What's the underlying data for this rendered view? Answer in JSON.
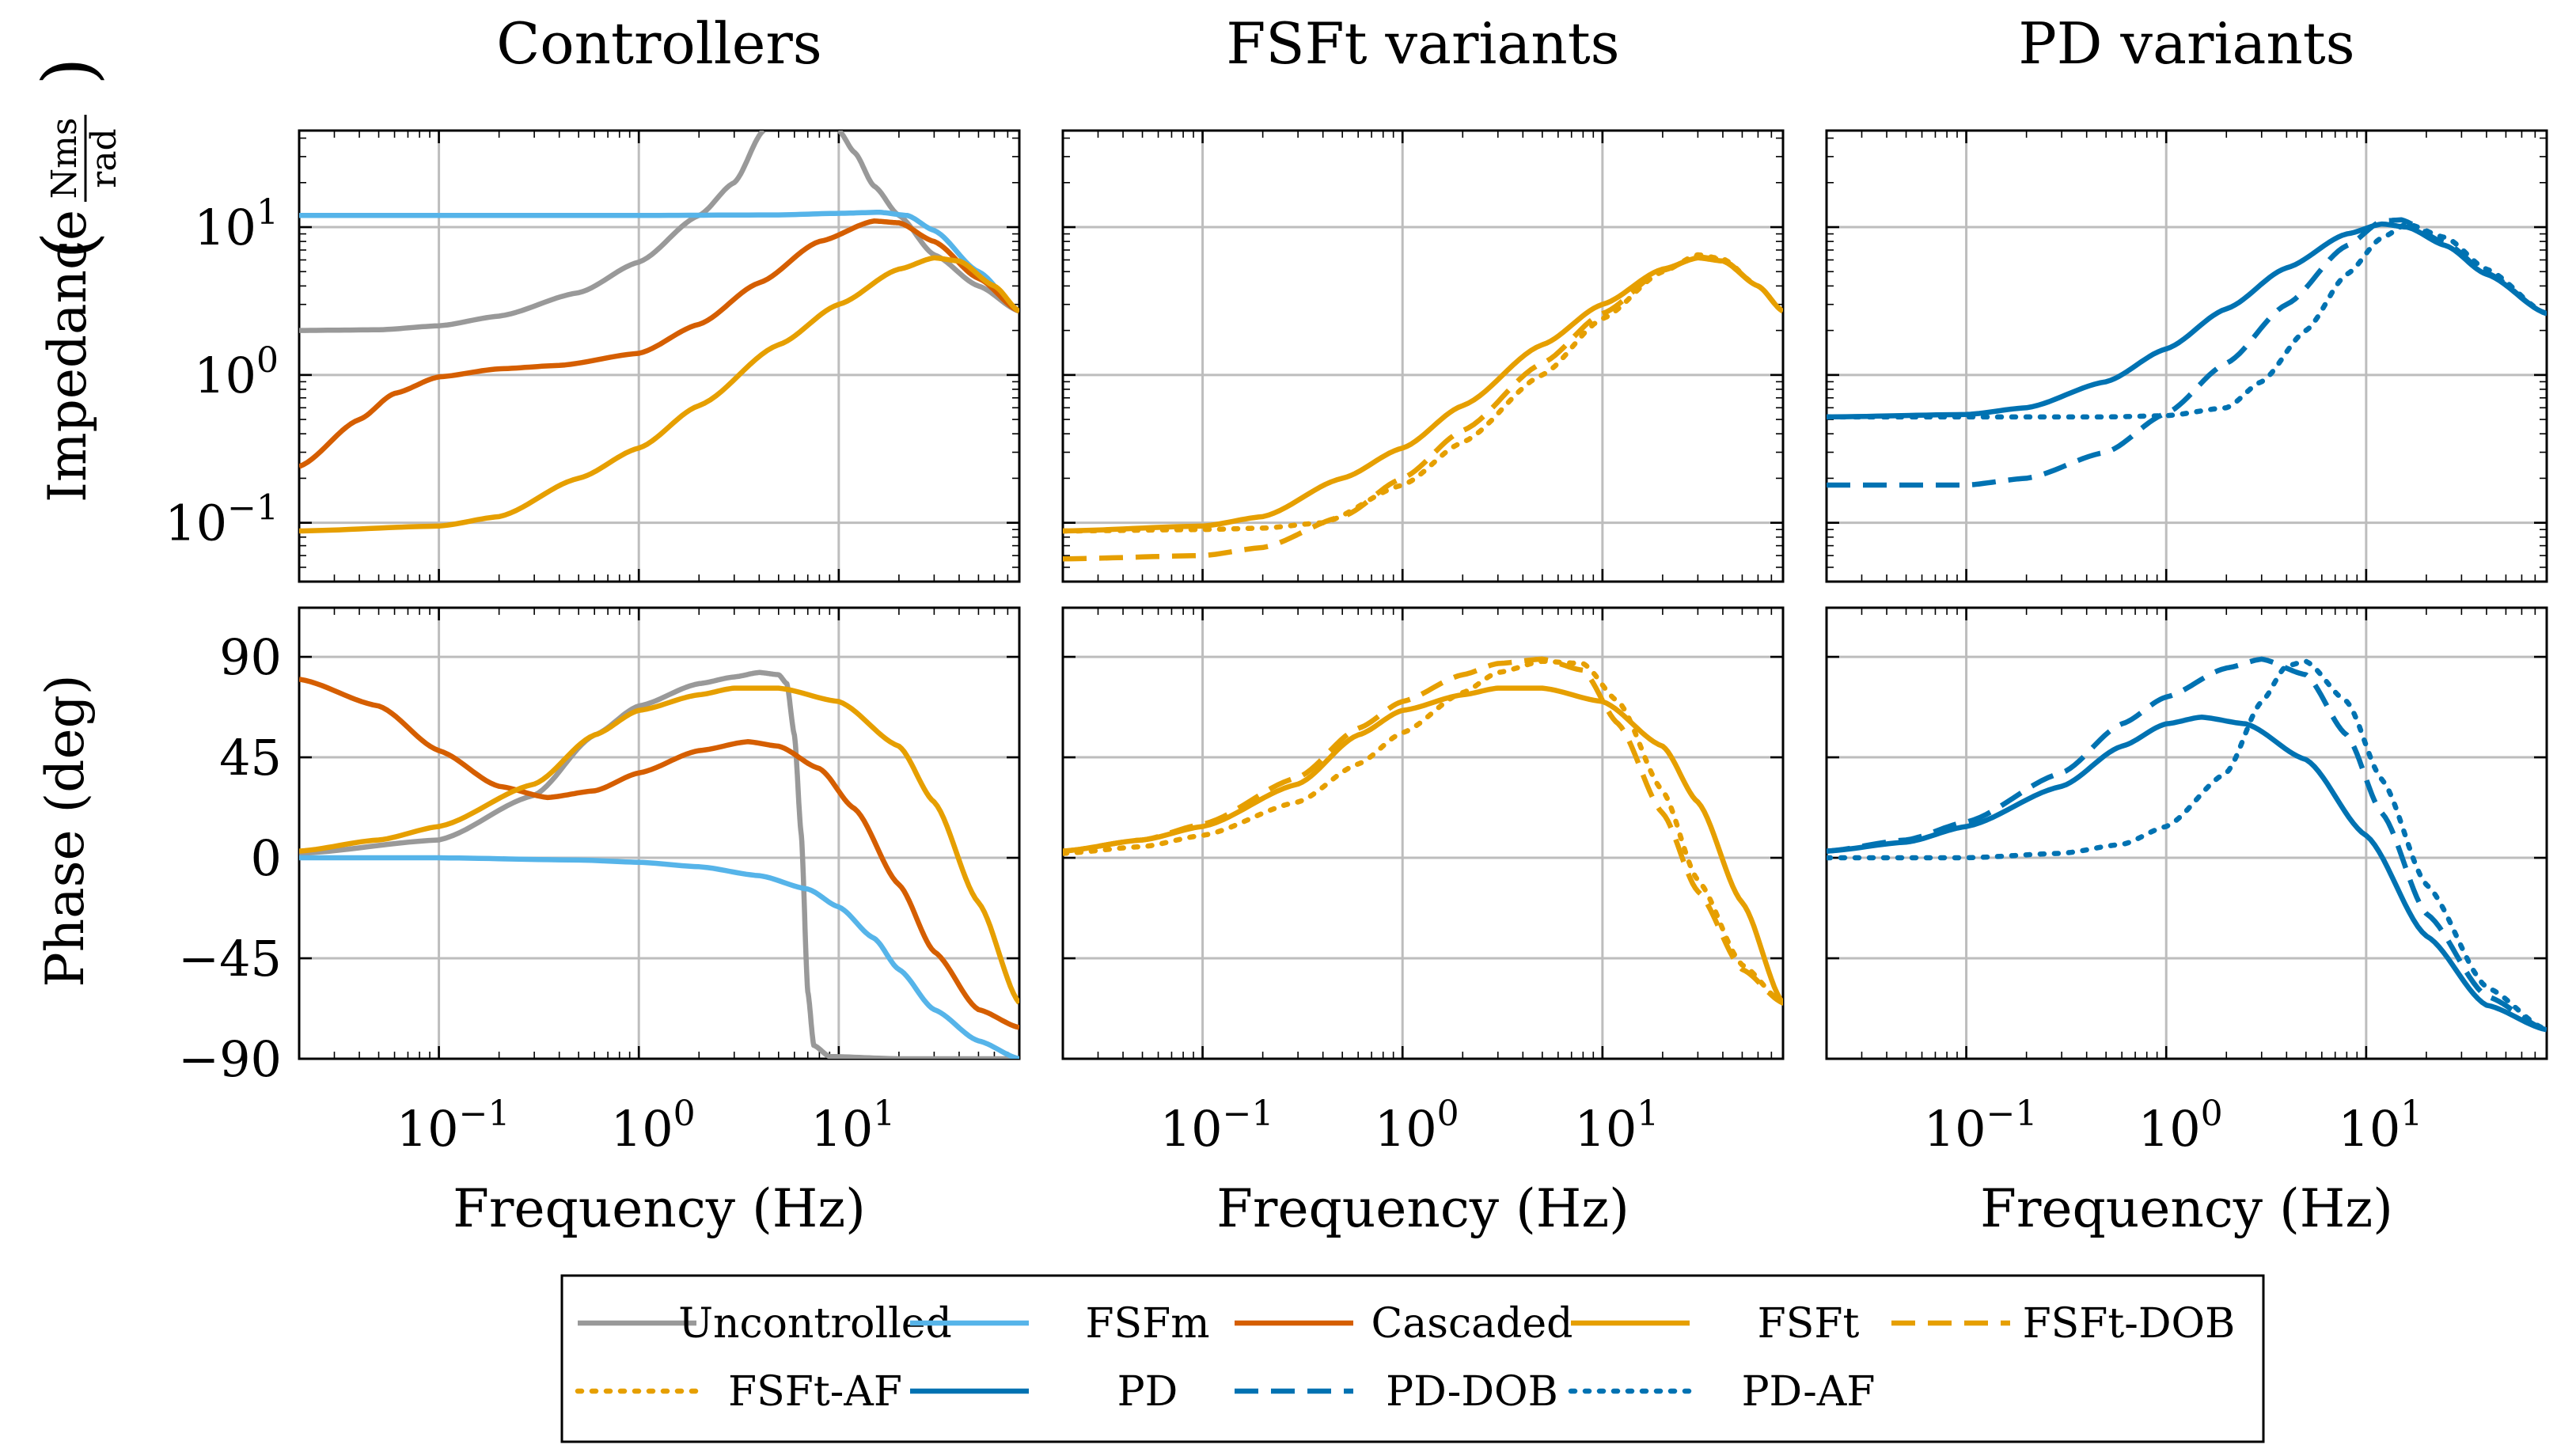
{
  "chart_data": {
    "type": "line",
    "title": "",
    "column_titles": [
      "Controllers",
      "FSFt variants",
      "PD variants"
    ],
    "xlabel": "Frequency (Hz)",
    "xscale": "log",
    "xlim": [
      0.02,
      80
    ],
    "x_ticks": [
      {
        "base": "10",
        "exp": "−1"
      },
      {
        "base": "10",
        "exp": "0"
      },
      {
        "base": "10",
        "exp": "1"
      }
    ],
    "impedance_axis": {
      "ylabel": "Impedance",
      "unit_num": "Nms",
      "unit_den": "rad",
      "yscale": "log",
      "ylim": [
        0.04,
        45
      ],
      "y_ticks": [
        {
          "base": "10",
          "exp": "1"
        },
        {
          "base": "10",
          "exp": "0"
        },
        {
          "base": "10",
          "exp": "−1"
        }
      ]
    },
    "phase_axis": {
      "ylabel": "Phase (deg)",
      "ylim": [
        -90,
        112
      ],
      "y_ticks": [
        "90",
        "45",
        "0",
        "−45",
        "−90"
      ]
    },
    "grid": true,
    "legend_position": "bottom-center",
    "series": [
      {
        "name": "Uncontrolled",
        "color": "#999999",
        "dash": "solid",
        "panel": "Controllers",
        "impedance": [
          [
            0.02,
            2.0
          ],
          [
            0.05,
            2.02
          ],
          [
            0.1,
            2.15
          ],
          [
            0.2,
            2.5
          ],
          [
            0.5,
            3.6
          ],
          [
            1,
            5.8
          ],
          [
            2,
            12
          ],
          [
            3,
            20
          ],
          [
            4.2,
            45
          ]
        ],
        "impedance_b": [
          [
            10,
            45
          ],
          [
            12,
            32
          ],
          [
            15,
            19
          ],
          [
            20,
            12
          ],
          [
            30,
            6.5
          ],
          [
            50,
            4
          ],
          [
            80,
            2.7
          ]
        ],
        "phase": [
          [
            0.02,
            2
          ],
          [
            0.1,
            8
          ],
          [
            0.3,
            28
          ],
          [
            0.6,
            55
          ],
          [
            1,
            68
          ],
          [
            2,
            78
          ],
          [
            3,
            81
          ],
          [
            4,
            83
          ],
          [
            5,
            82
          ],
          [
            5.5,
            78
          ],
          [
            6,
            55
          ],
          [
            6.5,
            10
          ],
          [
            7,
            -60
          ],
          [
            7.5,
            -84
          ],
          [
            9,
            -89
          ],
          [
            20,
            -90
          ],
          [
            80,
            -90
          ]
        ]
      },
      {
        "name": "FSFm",
        "color": "#56B4E9",
        "dash": "solid",
        "panel": "Controllers",
        "impedance": [
          [
            0.02,
            12
          ],
          [
            0.1,
            12
          ],
          [
            1,
            12
          ],
          [
            5,
            12.1
          ],
          [
            10,
            12.4
          ],
          [
            16,
            12.6
          ],
          [
            22,
            12
          ],
          [
            30,
            9.5
          ],
          [
            50,
            5
          ],
          [
            80,
            2.7
          ]
        ],
        "phase": [
          [
            0.02,
            0
          ],
          [
            0.1,
            0
          ],
          [
            0.5,
            -1
          ],
          [
            1,
            -2
          ],
          [
            2,
            -4
          ],
          [
            4,
            -8
          ],
          [
            7,
            -14
          ],
          [
            10,
            -22
          ],
          [
            15,
            -36
          ],
          [
            20,
            -50
          ],
          [
            30,
            -68
          ],
          [
            50,
            -82
          ],
          [
            80,
            -90
          ]
        ]
      },
      {
        "name": "Cascaded",
        "color": "#D55E00",
        "dash": "solid",
        "panel": "Controllers",
        "impedance": [
          [
            0.02,
            0.24
          ],
          [
            0.04,
            0.5
          ],
          [
            0.06,
            0.75
          ],
          [
            0.1,
            0.97
          ],
          [
            0.2,
            1.1
          ],
          [
            0.4,
            1.16
          ],
          [
            1,
            1.4
          ],
          [
            2,
            2.2
          ],
          [
            4,
            4.2
          ],
          [
            8,
            8
          ],
          [
            15,
            11
          ],
          [
            20,
            10.7
          ],
          [
            30,
            8
          ],
          [
            50,
            4.5
          ],
          [
            80,
            2.7
          ]
        ],
        "phase": [
          [
            0.02,
            80
          ],
          [
            0.05,
            68
          ],
          [
            0.1,
            48
          ],
          [
            0.2,
            32
          ],
          [
            0.35,
            27
          ],
          [
            0.6,
            30
          ],
          [
            1,
            38
          ],
          [
            2,
            48
          ],
          [
            3.5,
            52
          ],
          [
            5,
            50
          ],
          [
            8,
            40
          ],
          [
            12,
            22
          ],
          [
            20,
            -12
          ],
          [
            30,
            -42
          ],
          [
            50,
            -68
          ],
          [
            80,
            -76
          ]
        ]
      },
      {
        "name": "FSFt",
        "color": "#E69F00",
        "dash": "solid",
        "panel": "Controllers",
        "impedance": [
          [
            0.02,
            0.088
          ],
          [
            0.1,
            0.095
          ],
          [
            0.2,
            0.11
          ],
          [
            0.5,
            0.2
          ],
          [
            1,
            0.32
          ],
          [
            2,
            0.62
          ],
          [
            5,
            1.6
          ],
          [
            10,
            3
          ],
          [
            20,
            5.2
          ],
          [
            30,
            6.2
          ],
          [
            40,
            5.9
          ],
          [
            60,
            4
          ],
          [
            80,
            2.7
          ]
        ],
        "phase": [
          [
            0.02,
            3
          ],
          [
            0.05,
            8
          ],
          [
            0.1,
            14
          ],
          [
            0.3,
            33
          ],
          [
            0.6,
            55
          ],
          [
            1,
            66
          ],
          [
            2,
            73
          ],
          [
            3,
            76
          ],
          [
            5,
            76
          ],
          [
            10,
            70
          ],
          [
            20,
            50
          ],
          [
            30,
            25
          ],
          [
            50,
            -20
          ],
          [
            80,
            -65
          ]
        ]
      },
      {
        "name": "FSFt-DOB",
        "color": "#E69F00",
        "dash": "dashed",
        "panel": "FSFt variants",
        "impedance": [
          [
            0.02,
            0.057
          ],
          [
            0.1,
            0.06
          ],
          [
            0.2,
            0.068
          ],
          [
            0.5,
            0.11
          ],
          [
            1,
            0.2
          ],
          [
            2,
            0.42
          ],
          [
            5,
            1.2
          ],
          [
            10,
            2.6
          ],
          [
            20,
            5.1
          ],
          [
            30,
            6.3
          ],
          [
            40,
            6
          ],
          [
            60,
            4
          ],
          [
            80,
            2.7
          ]
        ],
        "phase": [
          [
            0.02,
            3
          ],
          [
            0.05,
            8
          ],
          [
            0.1,
            15
          ],
          [
            0.3,
            36
          ],
          [
            0.6,
            58
          ],
          [
            1,
            70
          ],
          [
            2,
            82
          ],
          [
            3,
            87
          ],
          [
            5,
            89
          ],
          [
            8,
            84
          ],
          [
            12,
            60
          ],
          [
            20,
            20
          ],
          [
            30,
            -15
          ],
          [
            50,
            -50
          ],
          [
            80,
            -65
          ]
        ]
      },
      {
        "name": "FSFt-AF",
        "color": "#E69F00",
        "dash": "dotted",
        "panel": "FSFt variants",
        "impedance": [
          [
            0.02,
            0.088
          ],
          [
            0.1,
            0.09
          ],
          [
            0.2,
            0.092
          ],
          [
            0.4,
            0.1
          ],
          [
            1,
            0.18
          ],
          [
            2,
            0.35
          ],
          [
            5,
            1
          ],
          [
            10,
            2.4
          ],
          [
            20,
            5
          ],
          [
            30,
            6.5
          ],
          [
            40,
            6.1
          ],
          [
            60,
            4
          ],
          [
            80,
            2.7
          ]
        ],
        "phase": [
          [
            0.02,
            2
          ],
          [
            0.05,
            5
          ],
          [
            0.1,
            10
          ],
          [
            0.3,
            25
          ],
          [
            0.6,
            42
          ],
          [
            1,
            56
          ],
          [
            2,
            74
          ],
          [
            3,
            83
          ],
          [
            5,
            88
          ],
          [
            8,
            87
          ],
          [
            12,
            70
          ],
          [
            20,
            30
          ],
          [
            30,
            -10
          ],
          [
            50,
            -48
          ],
          [
            80,
            -65
          ]
        ]
      },
      {
        "name": "PD",
        "color": "#0072B2",
        "dash": "solid",
        "panel": "PD variants",
        "impedance": [
          [
            0.02,
            0.52
          ],
          [
            0.1,
            0.54
          ],
          [
            0.2,
            0.6
          ],
          [
            0.5,
            0.9
          ],
          [
            1,
            1.5
          ],
          [
            2,
            2.8
          ],
          [
            4,
            5.3
          ],
          [
            8,
            9
          ],
          [
            12,
            10.5
          ],
          [
            16,
            10
          ],
          [
            25,
            7.5
          ],
          [
            40,
            4.8
          ],
          [
            80,
            2.6
          ]
        ],
        "phase": [
          [
            0.02,
            3
          ],
          [
            0.05,
            7
          ],
          [
            0.1,
            14
          ],
          [
            0.3,
            32
          ],
          [
            0.6,
            50
          ],
          [
            1,
            60
          ],
          [
            1.5,
            63
          ],
          [
            2.5,
            60
          ],
          [
            5,
            44
          ],
          [
            10,
            10
          ],
          [
            20,
            -35
          ],
          [
            40,
            -66
          ],
          [
            80,
            -77
          ]
        ]
      },
      {
        "name": "PD-DOB",
        "color": "#0072B2",
        "dash": "dashed",
        "panel": "PD variants",
        "impedance": [
          [
            0.02,
            0.18
          ],
          [
            0.1,
            0.18
          ],
          [
            0.2,
            0.2
          ],
          [
            0.5,
            0.3
          ],
          [
            1,
            0.55
          ],
          [
            2,
            1.2
          ],
          [
            4,
            3
          ],
          [
            8,
            7.5
          ],
          [
            12,
            11
          ],
          [
            15,
            11.2
          ],
          [
            25,
            7.8
          ],
          [
            40,
            4.9
          ],
          [
            80,
            2.6
          ]
        ],
        "phase": [
          [
            0.02,
            3
          ],
          [
            0.05,
            8
          ],
          [
            0.1,
            16
          ],
          [
            0.3,
            38
          ],
          [
            0.6,
            60
          ],
          [
            1,
            72
          ],
          [
            2,
            85
          ],
          [
            3,
            89
          ],
          [
            5,
            82
          ],
          [
            8,
            55
          ],
          [
            12,
            20
          ],
          [
            20,
            -25
          ],
          [
            40,
            -62
          ],
          [
            80,
            -77
          ]
        ]
      },
      {
        "name": "PD-AF",
        "color": "#0072B2",
        "dash": "dotted",
        "panel": "PD variants",
        "impedance": [
          [
            0.02,
            0.52
          ],
          [
            0.1,
            0.52
          ],
          [
            0.5,
            0.52
          ],
          [
            1,
            0.53
          ],
          [
            2,
            0.6
          ],
          [
            3,
            0.9
          ],
          [
            5,
            2
          ],
          [
            8,
            4.8
          ],
          [
            12,
            8.5
          ],
          [
            16,
            10.5
          ],
          [
            25,
            8.5
          ],
          [
            40,
            5.2
          ],
          [
            80,
            2.6
          ]
        ],
        "phase": [
          [
            0.02,
            0
          ],
          [
            0.1,
            0
          ],
          [
            0.3,
            2
          ],
          [
            0.6,
            6
          ],
          [
            1,
            14
          ],
          [
            2,
            38
          ],
          [
            3,
            70
          ],
          [
            4,
            86
          ],
          [
            5,
            88
          ],
          [
            8,
            70
          ],
          [
            12,
            35
          ],
          [
            20,
            -12
          ],
          [
            40,
            -58
          ],
          [
            80,
            -77
          ]
        ]
      }
    ]
  }
}
